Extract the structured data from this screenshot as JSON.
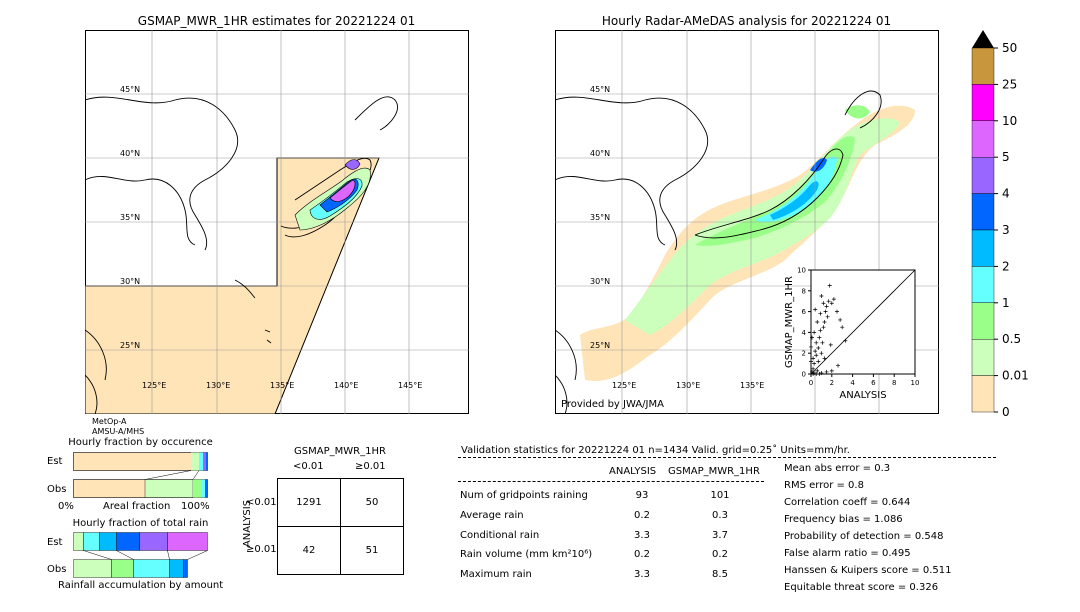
{
  "left_map": {
    "title": "GSMAP_MWR_1HR estimates for 20221224 01",
    "lat_labels": [
      "45°N",
      "40°N",
      "35°N",
      "30°N",
      "25°N"
    ],
    "lon_labels": [
      "125°E",
      "130°E",
      "135°E",
      "140°E",
      "145°E"
    ],
    "sensor_lines": [
      "MetOp-A",
      "AMSU-A/MHS"
    ]
  },
  "right_map": {
    "title": "Hourly Radar-AMeDAS analysis for 20221224 01",
    "lat_labels": [
      "45°N",
      "40°N",
      "35°N",
      "30°N",
      "25°N"
    ],
    "lon_labels": [
      "125°E",
      "130°E",
      "135°E"
    ],
    "credit": "Provided by JWA/JMA"
  },
  "colorbar": {
    "labels": [
      "50",
      "25",
      "10",
      "5",
      "4",
      "3",
      "2",
      "1",
      "0.5",
      "0.01",
      "0"
    ],
    "colors": [
      "#c8963c",
      "#ff00ff",
      "#dd66ff",
      "#9966ff",
      "#0066ff",
      "#00bbff",
      "#66ffff",
      "#99ff88",
      "#ccffbb",
      "#ffe4b8"
    ],
    "extend_color": "#000000"
  },
  "occurrence": {
    "title": "Hourly fraction by occurence",
    "rows": [
      "Est",
      "Obs"
    ],
    "axis_left": "0%",
    "axis_mid": "Areal fraction",
    "axis_right": "100%"
  },
  "total_rain": {
    "title": "Hourly fraction of total rain",
    "rows": [
      "Est",
      "Obs"
    ],
    "footer": "Rainfall accumulation by amount"
  },
  "contingency": {
    "title": "GSMAP_MWR_1HR",
    "col_headers": [
      "<0.01",
      "≥0.01"
    ],
    "row_axis_label": "ANALYSIS",
    "row_headers": [
      "<0.01",
      "≥0.01"
    ],
    "cells": [
      [
        "1291",
        "50"
      ],
      [
        "42",
        "51"
      ]
    ]
  },
  "validation": {
    "header": "Validation statistics for 20221224 01  n=1434 Valid. grid=0.25˚ Units=mm/hr.",
    "col_analysis": "ANALYSIS",
    "col_gsmap": "GSMAP_MWR_1HR",
    "rows": [
      {
        "label": "Num of gridpoints raining",
        "analysis": "93",
        "gsmap": "101"
      },
      {
        "label": "Average rain",
        "analysis": "0.2",
        "gsmap": "0.3"
      },
      {
        "label": "Conditional rain",
        "analysis": "3.3",
        "gsmap": "3.7"
      },
      {
        "label": "Rain volume (mm km²10⁶)",
        "analysis": "0.2",
        "gsmap": "0.2"
      },
      {
        "label": "Maximum rain",
        "analysis": "3.3",
        "gsmap": "8.5"
      }
    ],
    "scores": [
      "Mean abs error =    0.3",
      "RMS error =    0.8",
      "Correlation coeff =  0.644",
      "Frequency bias =  1.086",
      "Probability of detection =  0.548",
      "False alarm ratio =  0.495",
      "Hanssen & Kuipers score =  0.511",
      "Equitable threat score =  0.326"
    ]
  },
  "chart_data": {
    "type": "scatter",
    "xlabel": "ANALYSIS",
    "ylabel": "GSMAP_MWR_1HR",
    "xlim": [
      0,
      10
    ],
    "ylim": [
      0,
      10
    ],
    "x_ticks": [
      "0",
      "2",
      "4",
      "6",
      "8",
      "10"
    ],
    "y_ticks": [
      "0",
      "2",
      "4",
      "6",
      "8",
      "10"
    ],
    "points": [
      [
        0.1,
        0.2
      ],
      [
        0.2,
        0.5
      ],
      [
        0.3,
        1.0
      ],
      [
        0.2,
        1.5
      ],
      [
        0.4,
        2.2
      ],
      [
        0.5,
        3.0
      ],
      [
        0.3,
        0.1
      ],
      [
        0.6,
        0.3
      ],
      [
        0.5,
        1.8
      ],
      [
        0.7,
        2.5
      ],
      [
        0.8,
        3.5
      ],
      [
        0.9,
        4.2
      ],
      [
        1.0,
        2.0
      ],
      [
        1.1,
        3.0
      ],
      [
        1.2,
        4.5
      ],
      [
        1.3,
        5.0
      ],
      [
        1.4,
        6.0
      ],
      [
        1.5,
        6.5
      ],
      [
        1.6,
        5.5
      ],
      [
        1.7,
        7.0
      ],
      [
        1.8,
        8.5
      ],
      [
        2.0,
        6.8
      ],
      [
        2.2,
        7.2
      ],
      [
        2.5,
        6.0
      ],
      [
        2.8,
        5.2
      ],
      [
        3.0,
        4.5
      ],
      [
        3.3,
        3.2
      ],
      [
        0.2,
        0.0
      ],
      [
        0.5,
        0.0
      ],
      [
        0.8,
        0.0
      ],
      [
        1.0,
        0.1
      ],
      [
        1.5,
        0.2
      ],
      [
        2.0,
        0.3
      ],
      [
        0.1,
        3.5
      ],
      [
        0.3,
        4.0
      ],
      [
        0.6,
        5.0
      ],
      [
        0.9,
        5.8
      ],
      [
        1.2,
        6.8
      ],
      [
        0.4,
        6.2
      ],
      [
        1.0,
        7.5
      ],
      [
        2.6,
        0.8
      ],
      [
        0.0,
        1.2
      ],
      [
        0.0,
        2.6
      ],
      [
        0.7,
        1.2
      ],
      [
        1.3,
        1.5
      ],
      [
        1.9,
        2.8
      ]
    ]
  }
}
